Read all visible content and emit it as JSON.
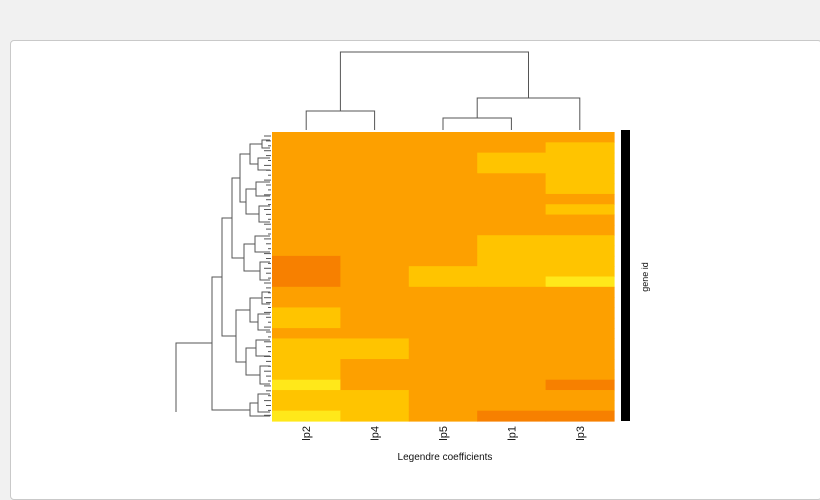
{
  "chart_data": {
    "type": "heatmap",
    "title": "",
    "xlabel": "Legendre coefficients",
    "ylabel": "gene id",
    "columns": [
      "lp2",
      "lp4",
      "lp5",
      "lp1",
      "lp3"
    ],
    "row_dendrogram": true,
    "column_dendrogram": true,
    "palette": [
      "#ffe81a",
      "#ffc400",
      "#fda000",
      "#f78000"
    ],
    "rows": [
      {
        "values": [
          2,
          2,
          2,
          2,
          2
        ]
      },
      {
        "values": [
          2,
          2,
          2,
          2,
          1
        ]
      },
      {
        "values": [
          2,
          2,
          2,
          1,
          1
        ]
      },
      {
        "values": [
          2,
          2,
          2,
          1,
          1
        ]
      },
      {
        "values": [
          2,
          2,
          2,
          2,
          1
        ]
      },
      {
        "values": [
          2,
          2,
          2,
          2,
          1
        ]
      },
      {
        "values": [
          2,
          2,
          2,
          2,
          2
        ]
      },
      {
        "values": [
          2,
          2,
          2,
          2,
          1
        ]
      },
      {
        "values": [
          2,
          2,
          2,
          2,
          2
        ]
      },
      {
        "values": [
          2,
          2,
          2,
          2,
          2
        ]
      },
      {
        "values": [
          2,
          2,
          2,
          1,
          1
        ]
      },
      {
        "values": [
          2,
          2,
          2,
          1,
          1
        ]
      },
      {
        "values": [
          3,
          2,
          2,
          1,
          1
        ]
      },
      {
        "values": [
          3,
          2,
          1,
          1,
          1
        ]
      },
      {
        "values": [
          3,
          2,
          1,
          1,
          0
        ]
      },
      {
        "values": [
          2,
          2,
          2,
          2,
          2
        ]
      },
      {
        "values": [
          2,
          2,
          2,
          2,
          2
        ]
      },
      {
        "values": [
          1,
          2,
          2,
          2,
          2
        ]
      },
      {
        "values": [
          1,
          2,
          2,
          2,
          2
        ]
      },
      {
        "values": [
          2,
          2,
          2,
          2,
          2
        ]
      },
      {
        "values": [
          1,
          1,
          2,
          2,
          2
        ]
      },
      {
        "values": [
          1,
          1,
          2,
          2,
          2
        ]
      },
      {
        "values": [
          1,
          2,
          2,
          2,
          2
        ]
      },
      {
        "values": [
          1,
          2,
          2,
          2,
          2
        ]
      },
      {
        "values": [
          0,
          2,
          2,
          2,
          3
        ]
      },
      {
        "values": [
          1,
          1,
          2,
          2,
          2
        ]
      },
      {
        "values": [
          1,
          1,
          2,
          2,
          2
        ]
      },
      {
        "values": [
          0,
          1,
          2,
          3,
          3
        ]
      }
    ]
  }
}
